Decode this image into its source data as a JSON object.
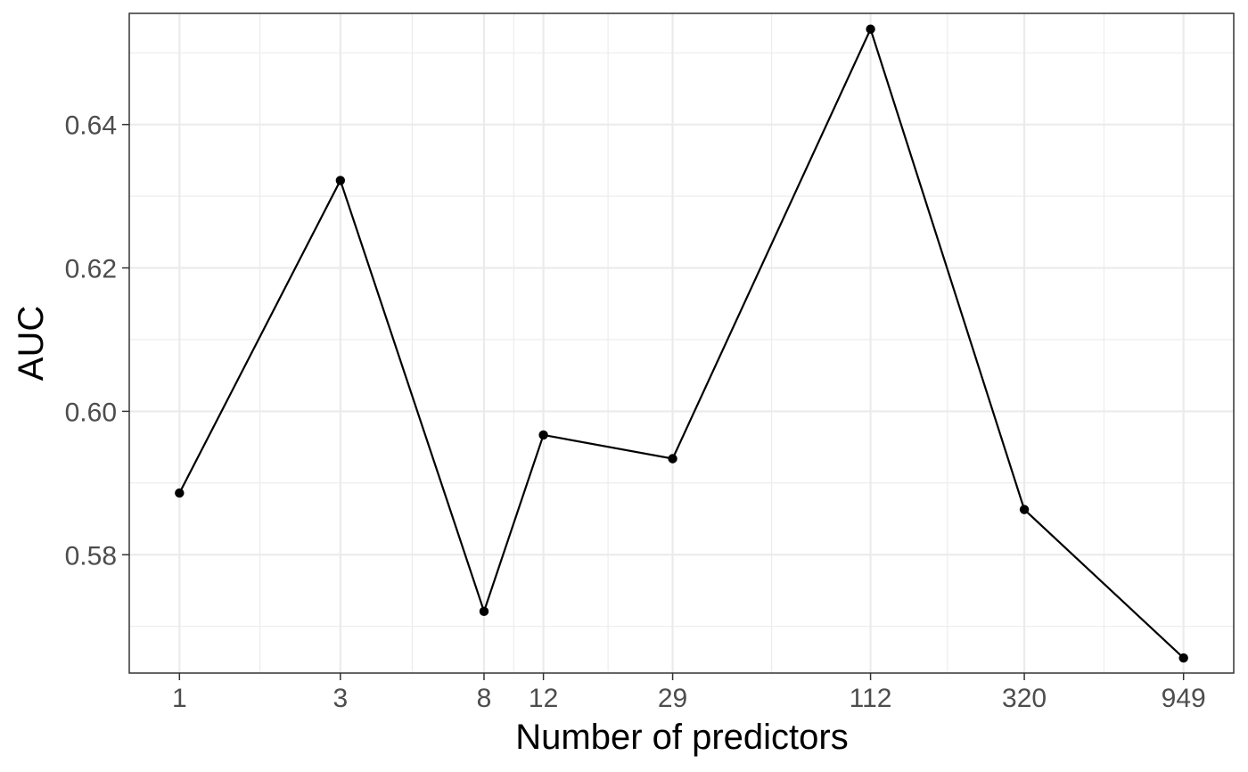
{
  "chart_data": {
    "type": "line",
    "xscale": "log",
    "xlabel": "Number of predictors",
    "ylabel": "AUC",
    "x": [
      1,
      3,
      8,
      12,
      29,
      112,
      320,
      949
    ],
    "x_tick_labels": [
      "1",
      "3",
      "8",
      "12",
      "29",
      "112",
      "320",
      "949"
    ],
    "y_ticks": [
      0.58,
      0.6,
      0.62,
      0.64
    ],
    "y_tick_labels": [
      "0.58",
      "0.60",
      "0.62",
      "0.64"
    ],
    "ylim": [
      0.5635,
      0.6555
    ],
    "series": [
      {
        "values": [
          0.5886,
          0.6322,
          0.5721,
          0.5967,
          0.5934,
          0.6533,
          0.5863,
          0.5656
        ],
        "color": "#000000"
      }
    ],
    "grid": true,
    "legend": "none"
  }
}
